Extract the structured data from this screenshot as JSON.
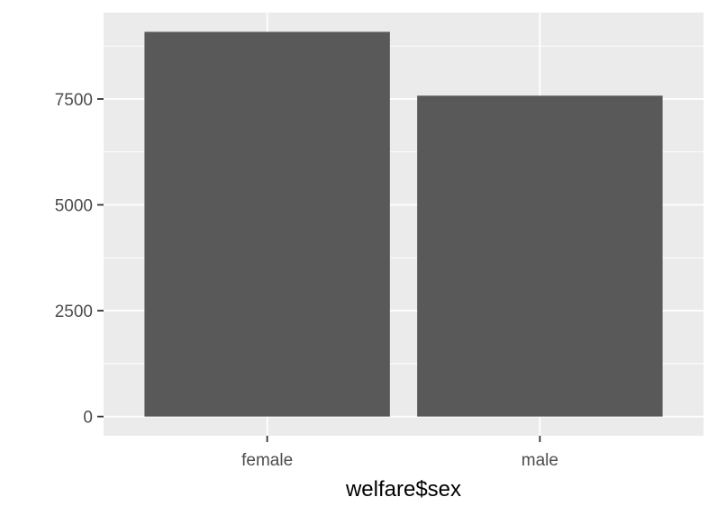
{
  "chart_data": {
    "type": "bar",
    "categories": [
      "female",
      "male"
    ],
    "values": [
      9086,
      7578
    ],
    "xlabel": "welfare$sex",
    "ylabel": "",
    "ylim": [
      -454,
      9540
    ],
    "yticks": [
      0,
      2500,
      5000,
      7500
    ],
    "ytick_labels": [
      "0",
      "2500",
      "5000",
      "7500"
    ],
    "grid": true,
    "colors": {
      "panel_background": "#ebebeb",
      "gridline": "#ffffff",
      "bar_fill": "#595959",
      "tick_label": "#4d4d4d",
      "tick_mark": "#333333",
      "axis_title": "#000000"
    }
  }
}
